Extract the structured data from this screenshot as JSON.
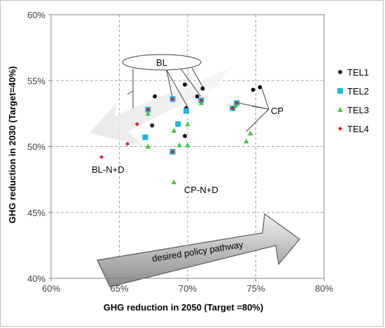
{
  "chart_data": {
    "type": "scatter",
    "xlabel": "GHG reduction in 2050 (Target =80%)",
    "ylabel": "GHG reduction in 2030 (Target=40%)",
    "xlim": [
      60,
      80
    ],
    "ylim": [
      40,
      60
    ],
    "x_ticks": [
      "60%",
      "65%",
      "70%",
      "75%",
      "80%"
    ],
    "y_ticks": [
      "40%",
      "45%",
      "50%",
      "55%",
      "60%"
    ],
    "grid": "dashed",
    "legend_position": "right",
    "series": [
      {
        "name": "TEL1",
        "marker": "circle",
        "color": "#000000",
        "points": [
          [
            67.6,
            53.8
          ],
          [
            69.8,
            54.7
          ],
          [
            71.1,
            54.4
          ],
          [
            70.7,
            53.8
          ],
          [
            69.9,
            52.9
          ],
          [
            67.4,
            51.6
          ],
          [
            69.8,
            50.8
          ],
          [
            74.8,
            54.3
          ],
          [
            75.3,
            54.5
          ]
        ]
      },
      {
        "name": "TEL2",
        "marker": "square",
        "color": "#1EB4E6",
        "points": [
          [
            67.1,
            52.8
          ],
          [
            68.9,
            53.6
          ],
          [
            71.0,
            53.5
          ],
          [
            69.9,
            52.7
          ],
          [
            69.3,
            51.7
          ],
          [
            66.9,
            50.7
          ],
          [
            68.9,
            49.6
          ],
          [
            73.3,
            52.9
          ],
          [
            73.6,
            53.3
          ]
        ]
      },
      {
        "name": "TEL3",
        "marker": "triangle",
        "color": "#3CC83C",
        "points": [
          [
            67.1,
            52.5
          ],
          [
            71.0,
            53.3
          ],
          [
            70.0,
            51.7
          ],
          [
            69.0,
            51.2
          ],
          [
            70.0,
            50.1
          ],
          [
            69.4,
            50.1
          ],
          [
            67.1,
            50.0
          ],
          [
            69.0,
            47.3
          ],
          [
            73.5,
            53.1
          ],
          [
            74.6,
            51.0
          ],
          [
            74.3,
            50.4
          ]
        ]
      },
      {
        "name": "TEL4",
        "marker": "diamond",
        "color": "#E02020",
        "points": [
          [
            66.3,
            51.7
          ],
          [
            65.6,
            50.2
          ],
          [
            63.7,
            49.2
          ],
          [
            67.1,
            52.8
          ],
          [
            68.9,
            53.6
          ],
          [
            71.0,
            53.5
          ],
          [
            68.9,
            49.6
          ],
          [
            73.3,
            52.9
          ],
          [
            73.6,
            53.3
          ]
        ]
      }
    ],
    "annotations": {
      "bl": "BL",
      "cp": "CP",
      "bl_nd": "BL-N+D",
      "cp_nd": "CP-N+D",
      "pathway": "desired policy pathway"
    }
  }
}
